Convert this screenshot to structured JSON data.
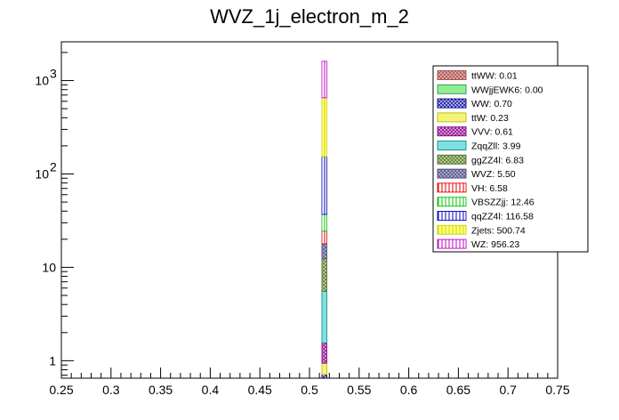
{
  "chart_data": {
    "type": "bar",
    "stacked": true,
    "title": "WVZ_1j_electron_m_2",
    "xlabel": "",
    "ylabel": "",
    "xlim": [
      0.25,
      0.75
    ],
    "ylim_log": [
      0.65,
      2600
    ],
    "yscale": "log",
    "bin": [
      0.5125,
      0.5175
    ],
    "x_ticks": [
      "0.25",
      "0.3",
      "0.35",
      "0.4",
      "0.45",
      "0.5",
      "0.55",
      "0.6",
      "0.65",
      "0.7",
      "0.75"
    ],
    "x_tick_values": [
      0.25,
      0.3,
      0.35,
      0.4,
      0.45,
      0.5,
      0.55,
      0.6,
      0.65,
      0.7,
      0.75
    ],
    "y_ticks": [
      {
        "value": 1,
        "label": "1"
      },
      {
        "value": 10,
        "label": "10"
      },
      {
        "value": 100,
        "label": "10",
        "exp": "2"
      },
      {
        "value": 1000,
        "label": "10",
        "exp": "3"
      }
    ],
    "legend_position": "top-right",
    "series": [
      {
        "name": "ttWW",
        "label": "ttWW: 0.01",
        "value": 0.01,
        "color": "#a04a4a",
        "pattern": "crosshatch",
        "fill": "#e8b0b0"
      },
      {
        "name": "WWjjEWK6",
        "label": "WWjjEWK6: 0.00",
        "value": 0.0,
        "color": "#2e8b57",
        "pattern": "solid",
        "fill": "#90ee90"
      },
      {
        "name": "WW",
        "label": "WW: 0.70",
        "value": 0.7,
        "color": "#000080",
        "pattern": "crosshatch",
        "fill": "#c0c0ff"
      },
      {
        "name": "ttW",
        "label": "ttW: 0.23",
        "value": 0.23,
        "color": "#b8b800",
        "pattern": "solid",
        "fill": "#f4f47a"
      },
      {
        "name": "VVV",
        "label": "VVV: 0.61",
        "value": 0.61,
        "color": "#800080",
        "pattern": "crosshatch",
        "fill": "#e0a0e0"
      },
      {
        "name": "ZqqZll",
        "label": "ZqqZll: 3.99",
        "value": 3.99,
        "color": "#008b8b",
        "pattern": "solid",
        "fill": "#80e0e0"
      },
      {
        "name": "ggZZ4l",
        "label": "ggZZ4l: 6.83",
        "value": 6.83,
        "color": "#556b2f",
        "pattern": "crosshatch",
        "fill": "#b8d890"
      },
      {
        "name": "WVZ",
        "label": "WVZ: 5.50",
        "value": 5.5,
        "color": "#4a4a80",
        "pattern": "crosshatch",
        "fill": "#b0b0d0"
      },
      {
        "name": "VH",
        "label": "VH: 6.58",
        "value": 6.58,
        "color": "#e00000",
        "pattern": "vlines",
        "fill": "#ffffff"
      },
      {
        "name": "VBSZZjj",
        "label": "VBSZZjj: 12.46",
        "value": 12.46,
        "color": "#00c000",
        "pattern": "vlines",
        "fill": "#ffffff"
      },
      {
        "name": "qqZZ4l",
        "label": "qqZZ4l: 116.58",
        "value": 116.58,
        "color": "#0000c0",
        "pattern": "vlines",
        "fill": "#ffffff"
      },
      {
        "name": "Zjets",
        "label": "Zjets: 500.74",
        "value": 500.74,
        "color": "#d0d000",
        "pattern": "vlines",
        "fill": "#ffff80"
      },
      {
        "name": "WZ",
        "label": "WZ: 956.23",
        "value": 956.23,
        "color": "#c000c0",
        "pattern": "vlines",
        "fill": "#ffffff"
      }
    ]
  }
}
